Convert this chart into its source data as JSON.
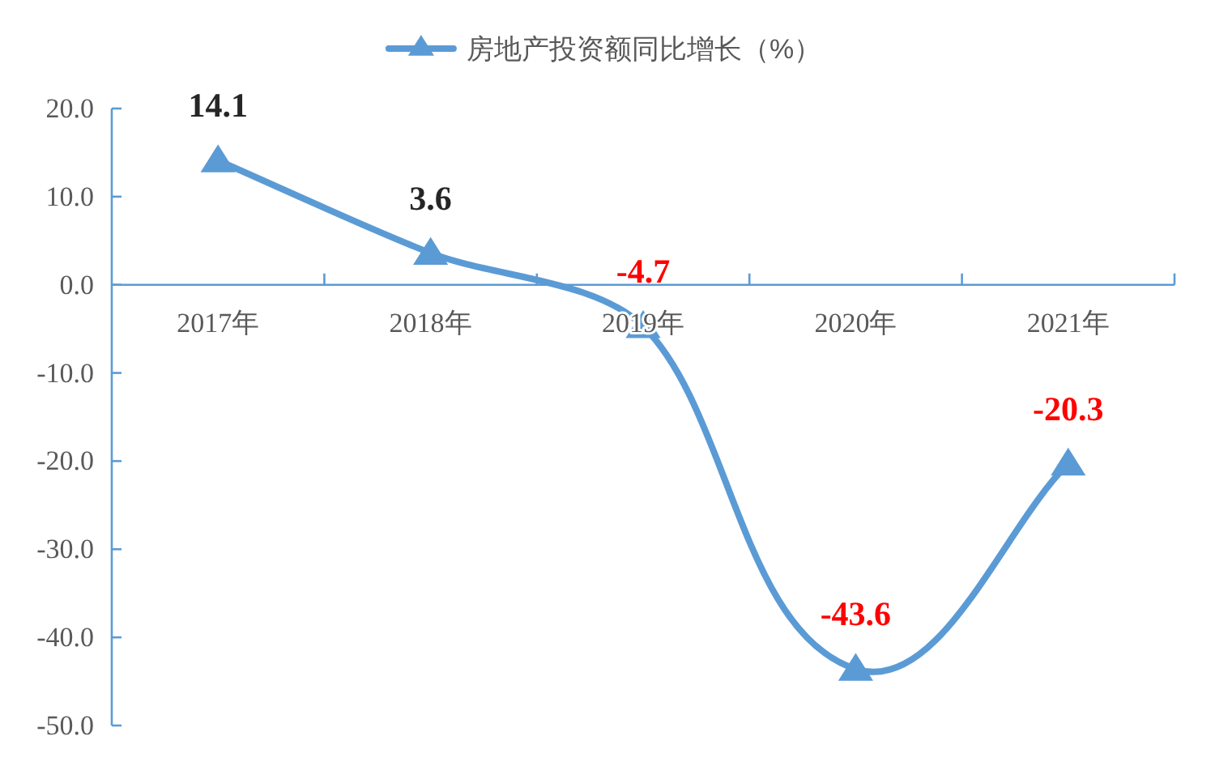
{
  "chart_data": {
    "type": "line",
    "categories": [
      "2017年",
      "2018年",
      "2019年",
      "2020年",
      "2021年"
    ],
    "series": [
      {
        "name": "房地产投资额同比增长（%）",
        "color": "#5b9bd5",
        "values": [
          14.1,
          3.6,
          -4.7,
          -43.6,
          -20.3
        ]
      }
    ],
    "ylim": [
      -50,
      20
    ],
    "yticks": [
      {
        "value": 20,
        "label": "20.0"
      },
      {
        "value": 10,
        "label": "10.0"
      },
      {
        "value": 0,
        "label": "0.0"
      },
      {
        "value": -10,
        "label": "-10.0"
      },
      {
        "value": -20,
        "label": "-20.0"
      },
      {
        "value": -30,
        "label": "-30.0"
      },
      {
        "value": -40,
        "label": "-40.0"
      },
      {
        "value": -50,
        "label": "-50.0"
      }
    ],
    "data_labels": true,
    "legend": "top",
    "marker": "triangle",
    "line_style": "solid",
    "grid": false
  }
}
